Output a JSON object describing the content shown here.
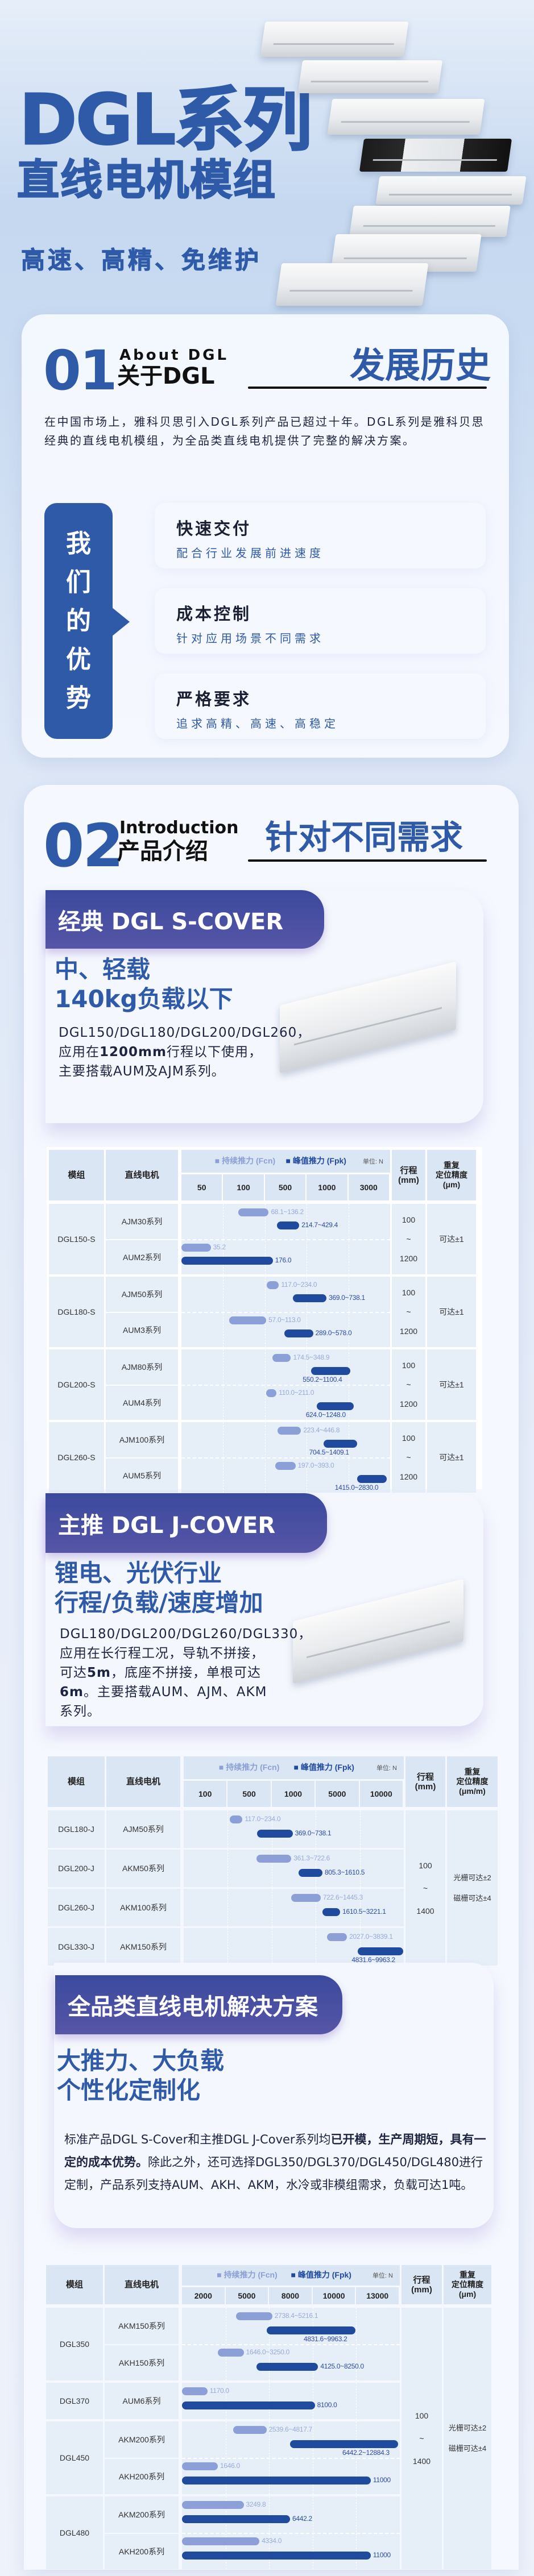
{
  "colors": {
    "primary": "#2f5aa8",
    "banner": "#3b4a9e",
    "bar_fcn": "#8c9fd6",
    "bar_fpk": "#1f4a9e",
    "cell": "#e6eef8"
  },
  "hero": {
    "title": "DGL系列",
    "subtitle": "直线电机模组",
    "tagline": "高速、高精、免维护"
  },
  "section1": {
    "num": "01",
    "en": "About DGL",
    "cn": "关于DGL",
    "right": "发展历史",
    "body": "在中国市场上，雅科贝思引入DGL系列产品已超过十年。DGL系列是雅科贝思经典的直线电机模组，为全品类直线电机提供了完整的解决方案。",
    "adv_tab": [
      "我",
      "们",
      "的",
      "优",
      "势"
    ],
    "advantages": [
      {
        "title": "快速交付",
        "sub": "配合行业发展前进速度"
      },
      {
        "title": "成本控制",
        "sub": "针对应用场景不同需求"
      },
      {
        "title": "严格要求",
        "sub": "追求高精、高速、高稳定"
      }
    ]
  },
  "section2": {
    "num": "02",
    "en": "Introduction",
    "cn": "产品介绍",
    "right": "针对不同需求",
    "scover": {
      "banner": "经典 DGL S-COVER",
      "sub1": "中、轻载",
      "sub2": "140kg负载以下",
      "body": [
        {
          "t": "DGL150/DGL180/DGL200/DGL260，应用在",
          "b": false
        },
        {
          "t": "1200mm",
          "b": true
        },
        {
          "t": "行程以下使用，主要搭载AUM及AJM系列。",
          "b": false
        }
      ]
    },
    "jcover": {
      "banner": "主推 DGL J-COVER",
      "sub1": "锂电、光伏行业",
      "sub2": "行程/负载/速度增加",
      "body": [
        {
          "t": "DGL180/DGL200/DGL260/DGL330，应用在长行程工况，导轨不拼接，可达",
          "b": false
        },
        {
          "t": "5m",
          "b": true
        },
        {
          "t": "，底座不拼接，单根可达",
          "b": false
        },
        {
          "t": "6m",
          "b": true
        },
        {
          "t": "。主要搭载AUM、AJM、AKM系列。",
          "b": false
        }
      ]
    },
    "full": {
      "banner": "全品类直线电机解决方案",
      "sub1": "大推力、大负载",
      "sub2": "个性化定制化",
      "body": [
        {
          "t": "标准产品DGL S-Cover和主推DGL J-Cover系列均",
          "b": false
        },
        {
          "t": "已开模，生产周期短，具有一定的成本优势。",
          "b": true
        },
        {
          "t": "除此之外，还可选择DGL350/DGL370/DGL450/DGL480进行定制，产品系列支持AUM、AKH、AKM，水冷或非模组需求，负载可达1吨。",
          "b": false
        }
      ]
    }
  },
  "tables": [
    {
      "header": {
        "module": "模组",
        "motor": "直线电机",
        "legend_fcn": "持续推力 (Fcn)",
        "legend_fpk": "峰值推力 (Fpk)",
        "unit": "单位: N",
        "stroke": "行程\n(mm)",
        "precision": "重复\n定位精度\n(μm)"
      },
      "ticks": [
        50,
        100,
        500,
        1000,
        3000
      ],
      "groups": [
        {
          "module": "DGL150-S",
          "stroke": "100\n~\n1200",
          "precision": "可达±1",
          "motors": [
            {
              "name": "AJM30系列",
              "fcn": {
                "label": "68.1~136.2",
                "min": 68.1,
                "max": 136.2
              },
              "fpk": {
                "label": "214.7~429.4",
                "min": 214.7,
                "max": 429.4
              }
            },
            {
              "name": "AUM2系列",
              "fcn": {
                "label": "35.2",
                "min": 0,
                "max": 35.2
              },
              "fpk": {
                "label": "176.0",
                "min": 0,
                "max": 176.0
              }
            }
          ]
        },
        {
          "module": "DGL180-S",
          "stroke": "100\n~\n1200",
          "precision": "可达±1",
          "motors": [
            {
              "name": "AJM50系列",
              "fcn": {
                "label": "117.0~234.0",
                "min": 117.0,
                "max": 234.0
              },
              "fpk": {
                "label": "369.0~738.1",
                "min": 369.0,
                "max": 738.1
              }
            },
            {
              "name": "AUM3系列",
              "fcn": {
                "label": "57.0~113.0",
                "min": 57.0,
                "max": 113.0
              },
              "fpk": {
                "label": "289.0~578.0",
                "min": 289.0,
                "max": 578.0
              }
            }
          ]
        },
        {
          "module": "DGL200-S",
          "stroke": "100\n~\n1200",
          "precision": "可达±1",
          "motors": [
            {
              "name": "AJM80系列",
              "fcn": {
                "label": "174.5~348.9",
                "min": 174.5,
                "max": 348.9
              },
              "fpk": {
                "label": "550.2~1100.4",
                "min": 550.2,
                "max": 1100.4
              }
            },
            {
              "name": "AUM4系列",
              "fcn": {
                "label": "110.0~211.0",
                "min": 110.0,
                "max": 211.0
              },
              "fpk": {
                "label": "624.0~1248.0",
                "min": 624.0,
                "max": 1248.0
              }
            }
          ]
        },
        {
          "module": "DGL260-S",
          "stroke": "100\n~\n1200",
          "precision": "可达±1",
          "motors": [
            {
              "name": "AJM100系列",
              "fcn": {
                "label": "223.4~446.8",
                "min": 223.4,
                "max": 446.8
              },
              "fpk": {
                "label": "704.5~1409.1",
                "min": 704.5,
                "max": 1409.1
              }
            },
            {
              "name": "AUM5系列",
              "fcn": {
                "label": "197.0~393.0",
                "min": 197.0,
                "max": 393.0
              },
              "fpk": {
                "label": "1415.0~2830.0",
                "min": 1415.0,
                "max": 2830.0
              }
            }
          ]
        }
      ]
    },
    {
      "header": {
        "module": "模组",
        "motor": "直线电机",
        "legend_fcn": "持续推力 (Fcn)",
        "legend_fpk": "峰值推力 (Fpk)",
        "unit": "单位: N",
        "stroke": "行程\n(mm)",
        "precision": "重复\n定位精度\n(μm/m)"
      },
      "ticks": [
        100,
        500,
        1000,
        5000,
        10000
      ],
      "stroke": "100\n\n~\n\n1400",
      "precision": "光栅可达±2\n\n磁栅可达±4",
      "groups": [
        {
          "module": "DGL180-J",
          "motors": [
            {
              "name": "AJM50系列",
              "fcn": {
                "label": "117.0~234.0",
                "min": 117.0,
                "max": 234.0
              },
              "fpk": {
                "label": "369.0~738.1",
                "min": 369.0,
                "max": 738.1
              }
            }
          ]
        },
        {
          "module": "DGL200-J",
          "motors": [
            {
              "name": "AKM50系列",
              "fcn": {
                "label": "361.3~722.6",
                "min": 361.3,
                "max": 722.6
              },
              "fpk": {
                "label": "805.3~1610.5",
                "min": 805.3,
                "max": 1610.5
              }
            }
          ]
        },
        {
          "module": "DGL260-J",
          "motors": [
            {
              "name": "AKM100系列",
              "fcn": {
                "label": "722.6~1445.3",
                "min": 722.6,
                "max": 1445.3
              },
              "fpk": {
                "label": "1610.5~3221.1",
                "min": 1610.5,
                "max": 3221.1
              }
            }
          ]
        },
        {
          "module": "DGL330-J",
          "motors": [
            {
              "name": "AKM150系列",
              "fcn": {
                "label": "2027.0~3839.1",
                "min": 2027.0,
                "max": 3839.1
              },
              "fpk": {
                "label": "4831.6~9963.2",
                "min": 4831.6,
                "max": 9963.2
              }
            }
          ]
        }
      ]
    },
    {
      "header": {
        "module": "模组",
        "motor": "直线电机",
        "legend_fcn": "持续推力 (Fcn)",
        "legend_fpk": "峰值推力 (Fpk)",
        "unit": "单位: N",
        "stroke": "行程\n(mm)",
        "precision": "重复\n定位精度\n(μm)"
      },
      "ticks": [
        2000,
        5000,
        8000,
        10000,
        13000
      ],
      "stroke": "100\n\n~\n\n1400",
      "precision": "光栅可达±2\n\n磁栅可达±4",
      "groups": [
        {
          "module": "DGL350",
          "motors": [
            {
              "name": "AKM150系列",
              "fcn": {
                "label": "2738.4~5216.1",
                "min": 2738.4,
                "max": 5216.1
              },
              "fpk": {
                "label": "4831.6~9963.2",
                "min": 4831.6,
                "max": 9963.2
              }
            },
            {
              "name": "AKH150系列",
              "fcn": {
                "label": "1646.0~3250.0",
                "min": 1646.0,
                "max": 3250.0
              },
              "fpk": {
                "label": "4125.0~8250.0",
                "min": 4125.0,
                "max": 8250.0
              }
            }
          ]
        },
        {
          "module": "DGL370",
          "motors": [
            {
              "name": "AUM6系列",
              "fcn": {
                "label": "1170.0",
                "min": 0,
                "max": 1170.0
              },
              "fpk": {
                "label": "8100.0",
                "min": 0,
                "max": 8100.0
              }
            }
          ]
        },
        {
          "module": "DGL450",
          "motors": [
            {
              "name": "AKM200系列",
              "fcn": {
                "label": "2539.6~4817.7",
                "min": 2539.6,
                "max": 4817.7
              },
              "fpk": {
                "label": "6442.2~12884.3",
                "min": 6442.2,
                "max": 12884.3
              }
            },
            {
              "name": "AKH200系列",
              "fcn": {
                "label": "1646.0",
                "min": 0,
                "max": 1646.0
              },
              "fpk": {
                "label": "11000",
                "min": 0,
                "max": 11000
              }
            }
          ]
        },
        {
          "module": "DGL480",
          "motors": [
            {
              "name": "AKM200系列",
              "fcn": {
                "label": "3249.8",
                "min": 0,
                "max": 3249.8
              },
              "fpk": {
                "label": "6442.2",
                "min": 0,
                "max": 6442.2
              }
            },
            {
              "name": "AKH200系列",
              "fcn": {
                "label": "4334.0",
                "min": 0,
                "max": 4334.0
              },
              "fpk": {
                "label": "11000",
                "min": 0,
                "max": 11000
              }
            }
          ]
        }
      ]
    }
  ]
}
